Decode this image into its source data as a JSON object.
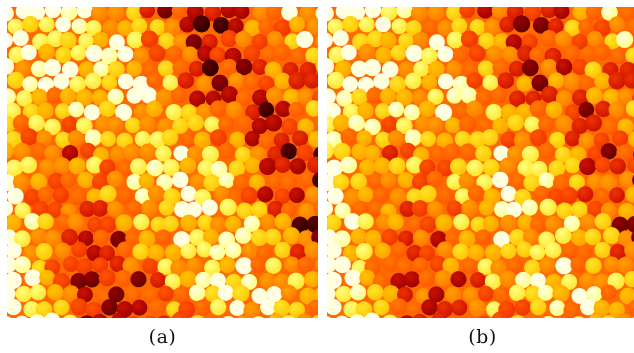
{
  "figure": {
    "panels": [
      {
        "id": "a",
        "caption": "(a)"
      },
      {
        "id": "b",
        "caption": "(b)"
      }
    ],
    "colormap": [
      "#2a0000",
      "#5e0000",
      "#990000",
      "#cc1100",
      "#ee3300",
      "#ff5500",
      "#ff7a00",
      "#ffa000",
      "#ffc400",
      "#ffe52a",
      "#ffff80",
      "#ffffe0"
    ],
    "background_color": "#ff6a00"
  }
}
